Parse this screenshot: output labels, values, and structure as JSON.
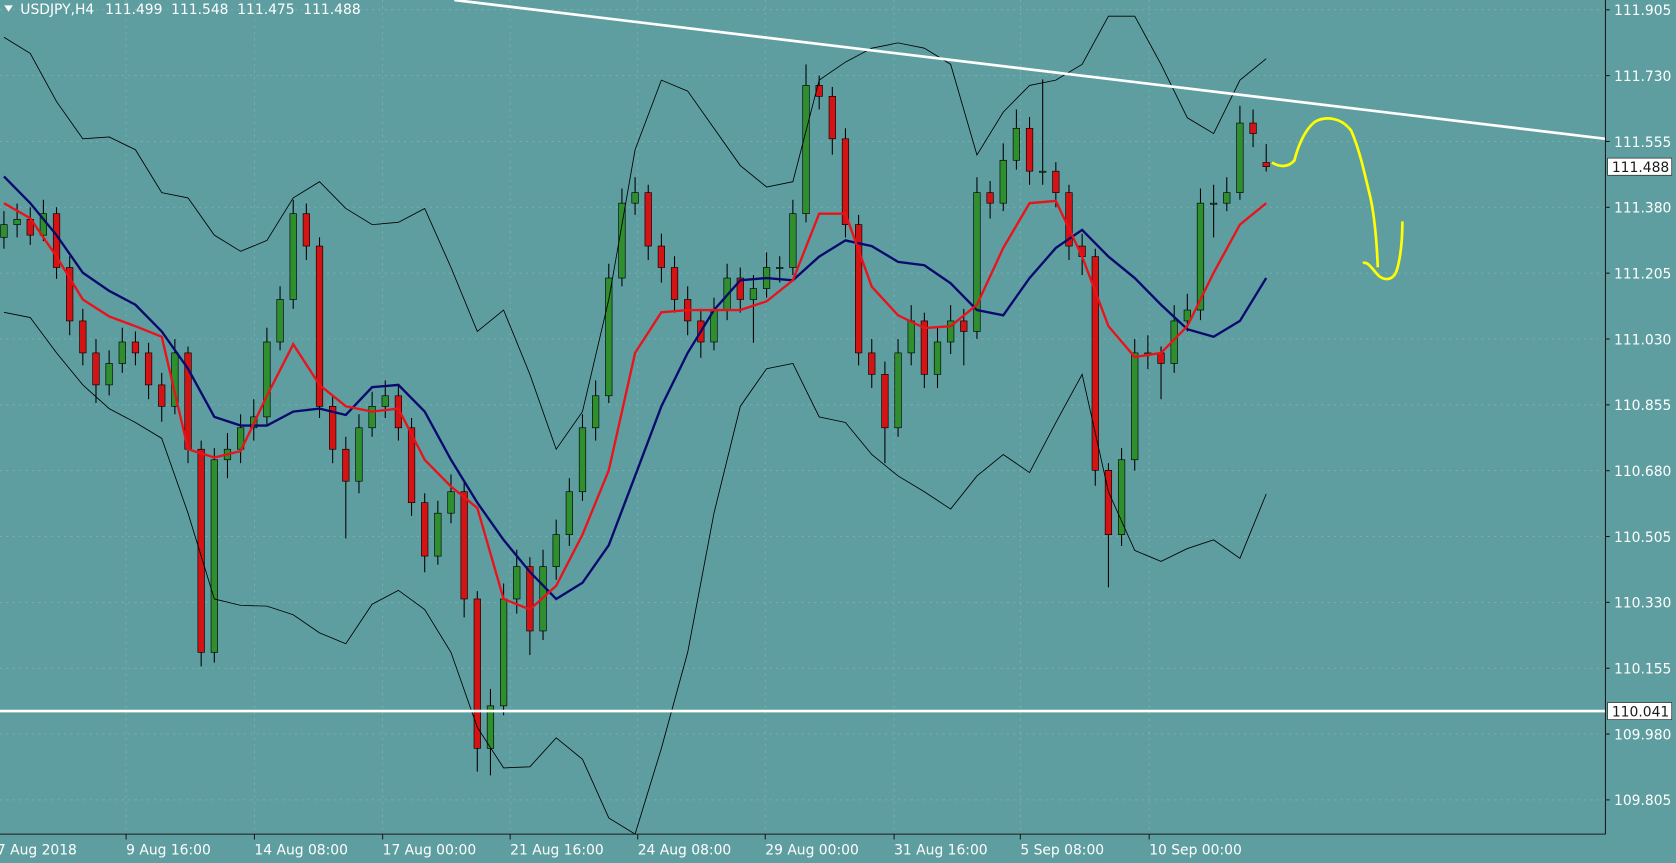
{
  "chart_data": {
    "type": "candlestick",
    "symbol": "USDJPY,H4",
    "up_color": "#2f8f2f",
    "down_color": "#d41414",
    "wick_color": "#000000",
    "background": "#5f9ea0",
    "grid": true,
    "candles": [
      [
        111.3,
        111.37,
        111.27,
        111.334
      ],
      [
        111.334,
        111.39,
        111.3,
        111.348
      ],
      [
        111.348,
        111.38,
        111.28,
        111.306
      ],
      [
        111.306,
        111.4,
        111.29,
        111.363
      ],
      [
        111.363,
        111.38,
        111.19,
        111.22
      ],
      [
        111.22,
        111.25,
        111.04,
        111.078
      ],
      [
        111.078,
        111.11,
        110.96,
        110.993
      ],
      [
        110.993,
        111.03,
        110.86,
        110.908
      ],
      [
        110.908,
        111.0,
        110.88,
        110.965
      ],
      [
        110.965,
        111.06,
        110.94,
        111.022
      ],
      [
        111.022,
        111.05,
        110.96,
        110.993
      ],
      [
        110.993,
        111.02,
        110.87,
        110.908
      ],
      [
        110.908,
        110.94,
        110.81,
        110.851
      ],
      [
        110.851,
        111.03,
        110.83,
        110.993
      ],
      [
        110.993,
        111.01,
        110.7,
        110.737
      ],
      [
        110.737,
        110.76,
        110.16,
        110.197
      ],
      [
        110.197,
        110.74,
        110.17,
        110.709
      ],
      [
        110.709,
        110.78,
        110.66,
        110.737
      ],
      [
        110.737,
        110.83,
        110.7,
        110.794
      ],
      [
        110.794,
        110.87,
        110.76,
        110.823
      ],
      [
        110.823,
        111.06,
        110.8,
        111.022
      ],
      [
        111.022,
        111.17,
        111.0,
        111.135
      ],
      [
        111.135,
        111.4,
        111.11,
        111.363
      ],
      [
        111.363,
        111.39,
        111.24,
        111.277
      ],
      [
        111.277,
        111.3,
        110.82,
        110.851
      ],
      [
        110.851,
        110.88,
        110.7,
        110.737
      ],
      [
        110.737,
        110.77,
        110.5,
        110.652
      ],
      [
        110.652,
        110.83,
        110.62,
        110.794
      ],
      [
        110.794,
        110.89,
        110.77,
        110.851
      ],
      [
        110.851,
        110.92,
        110.82,
        110.879
      ],
      [
        110.879,
        110.91,
        110.76,
        110.794
      ],
      [
        110.794,
        110.82,
        110.56,
        110.595
      ],
      [
        110.595,
        110.62,
        110.41,
        110.453
      ],
      [
        110.453,
        110.6,
        110.43,
        110.567
      ],
      [
        110.567,
        110.67,
        110.54,
        110.624
      ],
      [
        110.624,
        110.65,
        110.29,
        110.339
      ],
      [
        110.339,
        110.36,
        109.88,
        109.942
      ],
      [
        109.942,
        110.1,
        109.87,
        110.055
      ],
      [
        110.055,
        110.38,
        110.03,
        110.339
      ],
      [
        110.339,
        110.47,
        110.3,
        110.425
      ],
      [
        110.425,
        110.45,
        110.19,
        110.254
      ],
      [
        110.254,
        110.47,
        110.23,
        110.425
      ],
      [
        110.425,
        110.55,
        110.39,
        110.51
      ],
      [
        110.51,
        110.66,
        110.48,
        110.624
      ],
      [
        110.624,
        110.83,
        110.6,
        110.794
      ],
      [
        110.794,
        110.92,
        110.76,
        110.879
      ],
      [
        110.879,
        111.23,
        110.86,
        111.192
      ],
      [
        111.192,
        111.43,
        111.17,
        111.391
      ],
      [
        111.391,
        111.46,
        111.36,
        111.419
      ],
      [
        111.419,
        111.44,
        111.24,
        111.277
      ],
      [
        111.277,
        111.31,
        111.18,
        111.22
      ],
      [
        111.22,
        111.25,
        111.1,
        111.135
      ],
      [
        111.135,
        111.17,
        111.04,
        111.078
      ],
      [
        111.078,
        111.11,
        110.98,
        111.022
      ],
      [
        111.022,
        111.14,
        111.0,
        111.107
      ],
      [
        111.107,
        111.23,
        111.08,
        111.192
      ],
      [
        111.192,
        111.22,
        111.1,
        111.135
      ],
      [
        111.135,
        111.2,
        111.02,
        111.164
      ],
      [
        111.164,
        111.26,
        111.14,
        111.22
      ],
      [
        111.22,
        111.25,
        111.18,
        111.22
      ],
      [
        111.22,
        111.4,
        111.2,
        111.363
      ],
      [
        111.363,
        111.76,
        111.34,
        111.704
      ],
      [
        111.704,
        111.73,
        111.64,
        111.675
      ],
      [
        111.675,
        111.7,
        111.52,
        111.562
      ],
      [
        111.562,
        111.59,
        111.3,
        111.334
      ],
      [
        111.334,
        111.36,
        110.96,
        110.993
      ],
      [
        110.993,
        111.03,
        110.9,
        110.936
      ],
      [
        110.936,
        110.97,
        110.7,
        110.794
      ],
      [
        110.794,
        111.03,
        110.77,
        110.993
      ],
      [
        110.993,
        111.12,
        110.96,
        111.078
      ],
      [
        111.078,
        111.1,
        110.9,
        110.936
      ],
      [
        110.936,
        111.06,
        110.9,
        111.022
      ],
      [
        111.022,
        111.12,
        110.99,
        111.078
      ],
      [
        111.078,
        111.11,
        110.96,
        111.05
      ],
      [
        111.05,
        111.46,
        111.03,
        111.419
      ],
      [
        111.419,
        111.45,
        111.35,
        111.391
      ],
      [
        111.391,
        111.55,
        111.37,
        111.505
      ],
      [
        111.505,
        111.64,
        111.48,
        111.59
      ],
      [
        111.59,
        111.62,
        111.44,
        111.476
      ],
      [
        111.476,
        111.72,
        111.44,
        111.476
      ],
      [
        111.476,
        111.5,
        111.38,
        111.419
      ],
      [
        111.419,
        111.44,
        111.24,
        111.277
      ],
      [
        111.277,
        111.31,
        111.2,
        111.249
      ],
      [
        111.249,
        111.27,
        110.64,
        110.681
      ],
      [
        110.681,
        110.7,
        110.37,
        110.51
      ],
      [
        110.51,
        110.74,
        110.48,
        110.709
      ],
      [
        110.709,
        111.03,
        110.68,
        110.993
      ],
      [
        110.993,
        111.04,
        110.95,
        110.993
      ],
      [
        110.993,
        111.01,
        110.87,
        110.965
      ],
      [
        110.965,
        111.12,
        110.94,
        111.078
      ],
      [
        111.078,
        111.15,
        111.05,
        111.107
      ],
      [
        111.107,
        111.43,
        111.08,
        111.391
      ],
      [
        111.391,
        111.44,
        111.3,
        111.391
      ],
      [
        111.391,
        111.46,
        111.37,
        111.419
      ],
      [
        111.419,
        111.65,
        111.4,
        111.604
      ],
      [
        111.604,
        111.64,
        111.54,
        111.576
      ],
      [
        111.499,
        111.548,
        111.475,
        111.488
      ]
    ],
    "line_x": [
      0,
      2,
      4,
      6,
      8,
      10,
      12,
      14,
      16,
      18,
      20,
      22,
      24,
      26,
      28,
      30,
      32,
      34,
      36,
      38,
      40,
      42,
      44,
      46,
      48,
      50,
      52,
      54,
      56,
      58,
      60,
      62,
      64,
      66,
      68,
      70,
      72,
      74,
      76,
      78,
      80,
      82,
      84,
      86,
      88,
      90,
      92,
      94,
      96
    ],
    "series": [
      {
        "color": "#000000",
        "values": [
          111.832,
          111.789,
          111.661,
          111.562,
          111.567,
          111.533,
          111.419,
          111.405,
          111.306,
          111.263,
          111.292,
          111.405,
          111.448,
          111.377,
          111.334,
          111.34,
          111.377,
          111.22,
          111.05,
          111.107,
          110.936,
          110.737,
          110.837,
          111.135,
          111.533,
          111.718,
          111.689,
          111.59,
          111.491,
          111.434,
          111.448,
          111.718,
          111.766,
          111.803,
          111.817,
          111.803,
          111.76,
          111.519,
          111.633,
          111.704,
          111.718,
          111.76,
          111.888,
          111.888,
          111.76,
          111.618,
          111.576,
          111.718,
          111.775
        ]
      },
      {
        "color": "#000000",
        "values": [
          111.101,
          111.087,
          110.993,
          110.908,
          110.845,
          110.808,
          110.766,
          110.567,
          110.339,
          110.322,
          110.32,
          110.297,
          110.249,
          110.22,
          110.325,
          110.362,
          110.311,
          110.197,
          109.998,
          109.89,
          109.893,
          109.97,
          109.913,
          109.757,
          109.714,
          109.942,
          110.197,
          110.567,
          110.851,
          110.951,
          110.965,
          110.823,
          110.808,
          110.723,
          110.666,
          110.624,
          110.578,
          110.666,
          110.723,
          110.675,
          110.808,
          110.936,
          110.624,
          110.468,
          110.439,
          110.473,
          110.496,
          110.447,
          110.618
        ]
      },
      {
        "color": "#0a0a6e",
        "values": [
          111.462,
          111.391,
          111.306,
          111.206,
          111.158,
          111.121,
          111.05,
          110.951,
          110.823,
          110.8,
          110.8,
          110.837,
          110.845,
          110.828,
          110.902,
          110.908,
          110.837,
          110.709,
          110.595,
          110.496,
          110.411,
          110.339,
          110.382,
          110.482,
          110.666,
          110.851,
          110.993,
          111.107,
          111.186,
          111.192,
          111.186,
          111.249,
          111.292,
          111.277,
          111.235,
          111.226,
          111.178,
          111.107,
          111.093,
          111.192,
          111.272,
          111.32,
          111.249,
          111.192,
          111.121,
          111.056,
          111.036,
          111.078,
          111.192
        ]
      },
      {
        "color": "#e8131b",
        "values": [
          111.391,
          111.351,
          111.249,
          111.135,
          111.09,
          111.064,
          111.036,
          110.737,
          110.715,
          110.732,
          110.879,
          111.016,
          110.908,
          110.851,
          110.837,
          110.845,
          110.709,
          110.638,
          110.581,
          110.339,
          110.311,
          110.374,
          110.51,
          110.681,
          110.993,
          111.101,
          111.107,
          111.107,
          111.107,
          111.13,
          111.186,
          111.363,
          111.363,
          111.169,
          111.093,
          111.059,
          111.064,
          111.121,
          111.272,
          111.391,
          111.397,
          111.249,
          111.064,
          110.982,
          110.993,
          111.064,
          111.206,
          111.334,
          111.391
        ]
      }
    ],
    "trendline": {
      "x": [
        34.25,
        121.8
      ],
      "y": [
        111.931,
        111.562
      ],
      "color": "#ffffff"
    },
    "hline": {
      "value": 110.041,
      "color": "#ffffff"
    },
    "xlim": [
      -0.3,
      121.8
    ],
    "ylim": [
      109.714,
      111.931
    ],
    "xticks": [
      {
        "value": -0.54,
        "label": "7 Aug 2018"
      },
      {
        "value": 9.29,
        "label": "9 Aug 16:00"
      },
      {
        "value": 19.05,
        "label": "14 Aug 08:00"
      },
      {
        "value": 28.8,
        "label": "17 Aug 00:00"
      },
      {
        "value": 38.5,
        "label": "21 Aug 16:00"
      },
      {
        "value": 48.2,
        "label": "24 Aug 08:00"
      },
      {
        "value": 57.9,
        "label": "29 Aug 00:00"
      },
      {
        "value": 67.7,
        "label": "31 Aug 16:00"
      },
      {
        "value": 77.3,
        "label": "5 Sep 08:00"
      },
      {
        "value": 87.1,
        "label": "10 Sep 00:00"
      }
    ],
    "yticks": [
      111.905,
      {
        "value": 111.73,
        "label": "111.730"
      },
      111.555,
      {
        "value": 111.38,
        "label": "111.380"
      },
      111.205,
      {
        "value": 111.03,
        "label": "111.030"
      },
      110.855,
      {
        "value": 110.68,
        "label": "110.680"
      },
      110.505,
      {
        "value": 110.33,
        "label": "110.330"
      },
      110.155,
      {
        "value": 109.98,
        "label": "109.980"
      },
      109.805
    ]
  }
}
